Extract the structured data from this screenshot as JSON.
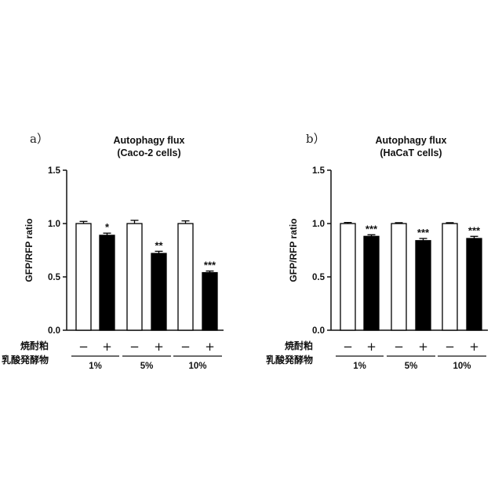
{
  "rows": {
    "row1_label": "焼酎粕",
    "row2_label": "乳酸発酵物",
    "minus": "−",
    "plus": "+"
  },
  "chart_data": [
    {
      "type": "bar",
      "panel": "a）",
      "title_line1": "Autophagy flux",
      "title_line2": "(Caco-2 cells)",
      "ylabel": "GFP/RFP ratio",
      "ylim": [
        0,
        1.5
      ],
      "yticks": [
        "0.0",
        "0.5",
        "1.0",
        "1.5"
      ],
      "groups": [
        "1%",
        "5%",
        "10%"
      ],
      "bars": [
        {
          "group": "1%",
          "treatment": "−",
          "value": 1.0,
          "error": 0.02,
          "fill": "white",
          "sig": ""
        },
        {
          "group": "1%",
          "treatment": "+",
          "value": 0.89,
          "error": 0.02,
          "fill": "black",
          "sig": "*"
        },
        {
          "group": "5%",
          "treatment": "−",
          "value": 1.0,
          "error": 0.03,
          "fill": "white",
          "sig": ""
        },
        {
          "group": "5%",
          "treatment": "+",
          "value": 0.72,
          "error": 0.02,
          "fill": "black",
          "sig": "**"
        },
        {
          "group": "10%",
          "treatment": "−",
          "value": 1.0,
          "error": 0.025,
          "fill": "white",
          "sig": ""
        },
        {
          "group": "10%",
          "treatment": "+",
          "value": 0.54,
          "error": 0.015,
          "fill": "black",
          "sig": "***"
        }
      ]
    },
    {
      "type": "bar",
      "panel": "b）",
      "title_line1": "Autophagy flux",
      "title_line2": "(HaCaT cells)",
      "ylabel": "GFP/RFP ratio",
      "ylim": [
        0,
        1.5
      ],
      "yticks": [
        "0.0",
        "0.5",
        "1.0",
        "1.5"
      ],
      "groups": [
        "1%",
        "5%",
        "10%"
      ],
      "bars": [
        {
          "group": "1%",
          "treatment": "−",
          "value": 1.0,
          "error": 0.01,
          "fill": "white",
          "sig": ""
        },
        {
          "group": "1%",
          "treatment": "+",
          "value": 0.88,
          "error": 0.015,
          "fill": "black",
          "sig": "***"
        },
        {
          "group": "5%",
          "treatment": "−",
          "value": 1.0,
          "error": 0.008,
          "fill": "white",
          "sig": ""
        },
        {
          "group": "5%",
          "treatment": "+",
          "value": 0.84,
          "error": 0.02,
          "fill": "black",
          "sig": "***"
        },
        {
          "group": "10%",
          "treatment": "−",
          "value": 1.0,
          "error": 0.008,
          "fill": "white",
          "sig": ""
        },
        {
          "group": "10%",
          "treatment": "+",
          "value": 0.86,
          "error": 0.02,
          "fill": "black",
          "sig": "***"
        }
      ]
    }
  ]
}
